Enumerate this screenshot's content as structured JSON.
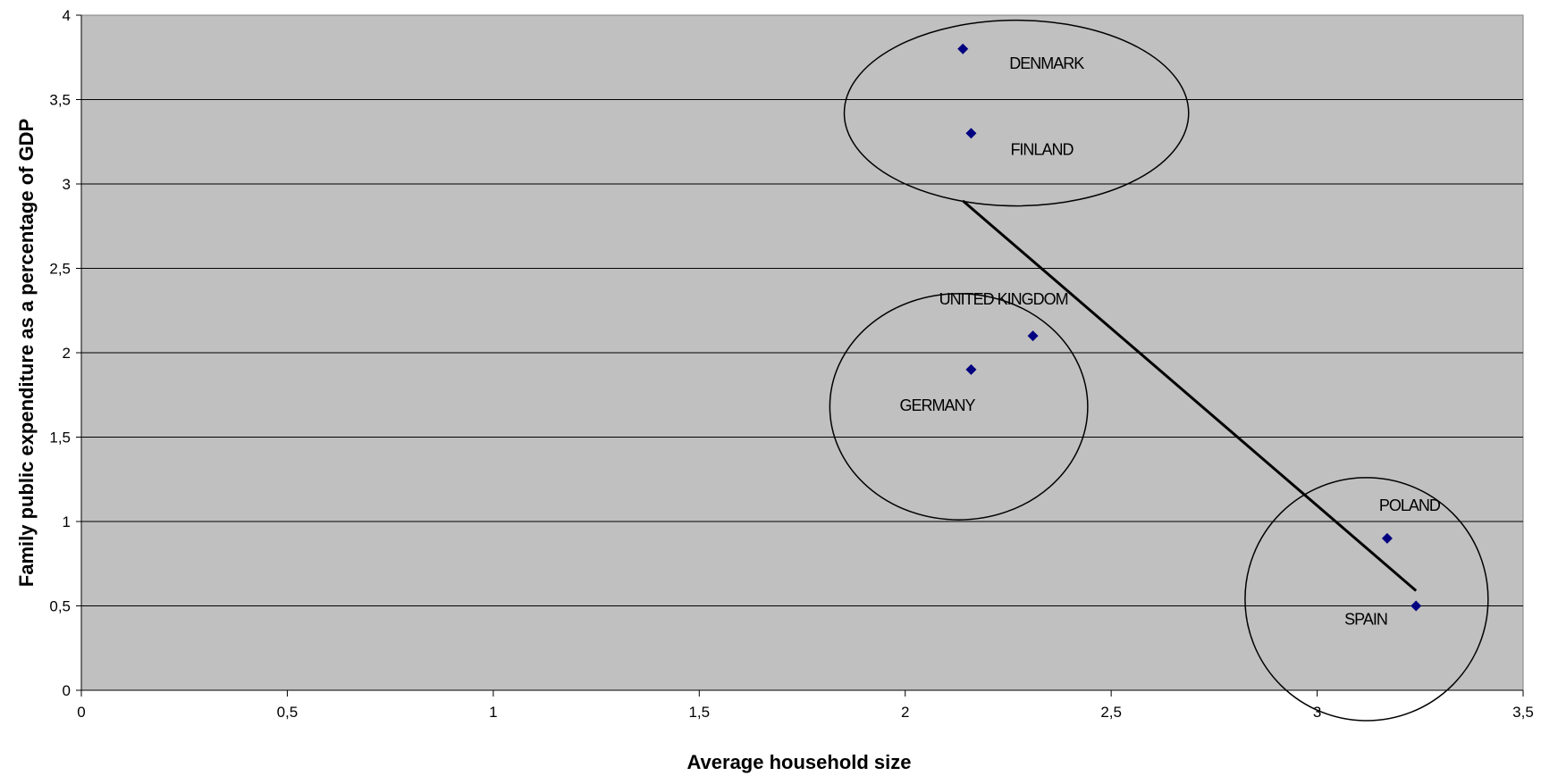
{
  "chart_data": {
    "type": "scatter",
    "title": "",
    "xlabel": "Average household size",
    "ylabel": "Family public expenditure as a percentage of GDP",
    "xlim": [
      0,
      3.5
    ],
    "ylim": [
      0,
      4
    ],
    "x_ticks": [
      "0",
      "0,5",
      "1",
      "1,5",
      "2",
      "2,5",
      "3",
      "3,5"
    ],
    "y_ticks": [
      "0",
      "0,5",
      "1",
      "1,5",
      "2",
      "2,5",
      "3",
      "3,5",
      "4"
    ],
    "grid": "horizontal",
    "plot_background": "#C0C0C0",
    "marker_color": "#000080",
    "marker": "diamond",
    "points": [
      {
        "label": "DENMARK",
        "x": 2.14,
        "y": 3.8
      },
      {
        "label": "FINLAND",
        "x": 2.16,
        "y": 3.3
      },
      {
        "label": "UNITED KINGDOM",
        "x": 2.31,
        "y": 2.1
      },
      {
        "label": "GERMANY",
        "x": 2.16,
        "y": 1.9
      },
      {
        "label": "POLAND",
        "x": 3.17,
        "y": 0.9
      },
      {
        "label": "SPAIN",
        "x": 3.24,
        "y": 0.5
      }
    ],
    "annotations": {
      "trend_line": {
        "x": [
          2.14,
          3.24
        ],
        "y": [
          2.9,
          0.59
        ]
      },
      "groups": [
        {
          "members": [
            "DENMARK",
            "FINLAND"
          ],
          "shape": "ellipse"
        },
        {
          "members": [
            "UNITED KINGDOM",
            "GERMANY"
          ],
          "shape": "ellipse"
        },
        {
          "members": [
            "POLAND",
            "SPAIN"
          ],
          "shape": "ellipse"
        }
      ]
    }
  }
}
